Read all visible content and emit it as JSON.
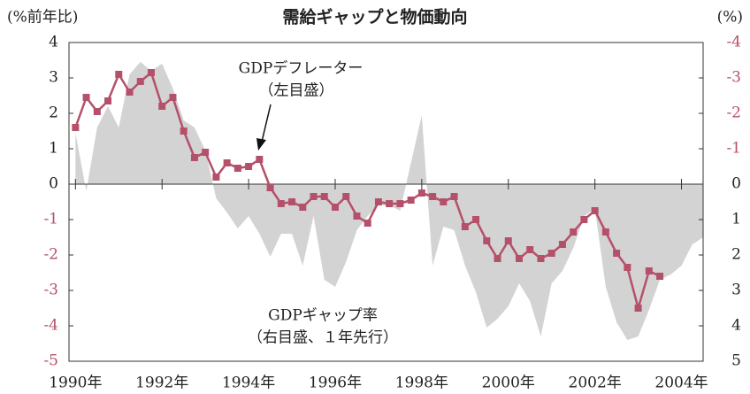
{
  "chart_data": {
    "type": "line",
    "title": "需給ギャップと物価動向",
    "y_label": "(%前年比)",
    "y2_label": "(%)",
    "annotations": [
      "GDPデフレーター",
      "（左目盛）",
      "GDPギャップ率",
      "（右目盛、１年先行）"
    ],
    "xlim": [
      1989.85,
      2004.5
    ],
    "xticks": [
      {
        "value": 1990,
        "label": "1990年"
      },
      {
        "value": 1992,
        "label": "1992年"
      },
      {
        "value": 1994,
        "label": "1994年"
      },
      {
        "value": 1996,
        "label": "1996年"
      },
      {
        "value": 1998,
        "label": "1998年"
      },
      {
        "value": 2000,
        "label": "2000年"
      },
      {
        "value": 2002,
        "label": "2002年"
      },
      {
        "value": 2004,
        "label": "2004年"
      }
    ],
    "ylim": [
      -5,
      4
    ],
    "yticks": [
      4,
      3,
      2,
      1,
      0,
      -1,
      -2,
      -3,
      -4,
      -5
    ],
    "y2lim": [
      5,
      -4
    ],
    "y2ticks": [
      -4,
      -3,
      -2,
      -1,
      0,
      1,
      2,
      3,
      4,
      5
    ],
    "series": [
      {
        "name": "GDPギャップ率",
        "type": "area",
        "axis": "y2",
        "color": "#d3d3d3",
        "x": [
          1990,
          1990.25,
          1990.5,
          1990.75,
          1991,
          1991.25,
          1991.5,
          1991.75,
          1992,
          1992.25,
          1992.5,
          1992.75,
          1993,
          1993.25,
          1993.5,
          1993.75,
          1994,
          1994.25,
          1994.5,
          1994.75,
          1995,
          1995.25,
          1995.5,
          1995.75,
          1996,
          1996.25,
          1996.5,
          1996.75,
          1997,
          1997.25,
          1997.5,
          1997.75,
          1998,
          1998.25,
          1998.5,
          1998.75,
          1999,
          1999.25,
          1999.5,
          1999.75,
          2000,
          2000.25,
          2000.5,
          2000.75,
          2001,
          2001.25,
          2001.5,
          2001.75,
          2002,
          2002.25,
          2002.5,
          2002.75,
          2003,
          2003.25,
          2003.5,
          2003.75,
          2004,
          2004.25,
          2004.5
        ],
        "values": [
          -1.45,
          0.2,
          -1.6,
          -2.2,
          -1.6,
          -3.1,
          -3.45,
          -3.2,
          -3.4,
          -2.7,
          -1.8,
          -1.6,
          -0.95,
          0.4,
          0.8,
          1.25,
          0.9,
          1.4,
          2.05,
          1.4,
          1.4,
          2.3,
          0.9,
          2.7,
          2.9,
          2.2,
          1.3,
          0.9,
          0.6,
          0.6,
          0.75,
          -0.6,
          -1.95,
          2.3,
          1.2,
          1.3,
          2.3,
          3.05,
          4.05,
          3.8,
          3.45,
          2.8,
          3.3,
          4.3,
          2.8,
          2.45,
          1.8,
          0.9,
          0.7,
          2.9,
          3.9,
          4.4,
          4.3,
          3.55,
          2.7,
          2.55,
          2.3,
          1.7,
          1.5
        ]
      },
      {
        "name": "GDPデフレーター",
        "type": "line",
        "color": "#b5506a",
        "x": [
          1990,
          1990.25,
          1990.5,
          1990.75,
          1991,
          1991.25,
          1991.5,
          1991.75,
          1992,
          1992.25,
          1992.5,
          1992.75,
          1993,
          1993.25,
          1993.5,
          1993.75,
          1994,
          1994.25,
          1994.5,
          1994.75,
          1995,
          1995.25,
          1995.5,
          1995.75,
          1996,
          1996.25,
          1996.5,
          1996.75,
          1997,
          1997.25,
          1997.5,
          1997.75,
          1998,
          1998.25,
          1998.5,
          1998.75,
          1999,
          1999.25,
          1999.5,
          1999.75,
          2000,
          2000.25,
          2000.5,
          2000.75,
          2001,
          2001.25,
          2001.5,
          2001.75,
          2002,
          2002.25,
          2002.5,
          2002.75,
          2003,
          2003.25,
          2003.5
        ],
        "values": [
          1.6,
          2.45,
          2.05,
          2.35,
          3.1,
          2.6,
          2.9,
          3.15,
          2.2,
          2.45,
          1.5,
          0.75,
          0.9,
          0.2,
          0.6,
          0.45,
          0.5,
          0.7,
          -0.1,
          -0.55,
          -0.5,
          -0.65,
          -0.35,
          -0.35,
          -0.65,
          -0.35,
          -0.9,
          -1.1,
          -0.5,
          -0.55,
          -0.55,
          -0.45,
          -0.25,
          -0.35,
          -0.5,
          -0.35,
          -1.2,
          -1.0,
          -1.6,
          -2.1,
          -1.6,
          -2.1,
          -1.85,
          -2.1,
          -1.95,
          -1.7,
          -1.35,
          -1.0,
          -0.75,
          -1.35,
          -1.95,
          -2.35,
          -3.5,
          -2.45,
          -2.6
        ]
      }
    ]
  }
}
